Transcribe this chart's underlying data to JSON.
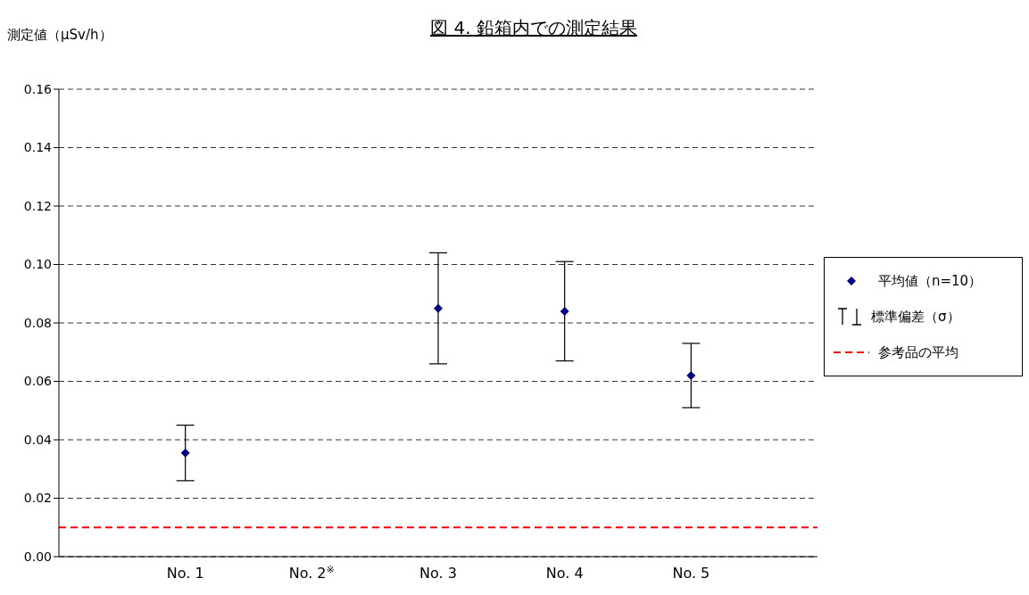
{
  "chart_data": {
    "type": "scatter",
    "title": "図 4.  鉛箱内での測定結果",
    "ylabel": "測定値（μSv/h）",
    "categories": [
      "No. 1",
      "No. 2$^{※}$",
      "No. 3",
      "No. 4",
      "No. 5"
    ],
    "series": [
      {
        "name": "平均値（n=10）",
        "color": "#000080",
        "values": [
          0.0355,
          null,
          0.085,
          0.084,
          0.062
        ],
        "errors": [
          [
            0.026,
            0.045
          ],
          null,
          [
            0.066,
            0.104
          ],
          [
            0.067,
            0.101
          ],
          [
            0.051,
            0.073
          ]
        ]
      }
    ],
    "annotations": [
      "標準偏差（σ）"
    ],
    "ref_lines": [
      {
        "axis": "y",
        "value": 0.01,
        "label": "参考品の平均",
        "color": "#ff0000",
        "line_style": "dashed"
      }
    ],
    "ylim": [
      0,
      0.16
    ],
    "yticks": [
      {
        "value": 0,
        "label": "0.00"
      },
      0.02,
      0.04,
      0.06,
      0.08,
      {
        "value": 0.1,
        "label": "0.10"
      },
      0.12,
      0.14,
      0.16
    ],
    "grid": "y",
    "legend": "right",
    "marker": "diamond"
  }
}
